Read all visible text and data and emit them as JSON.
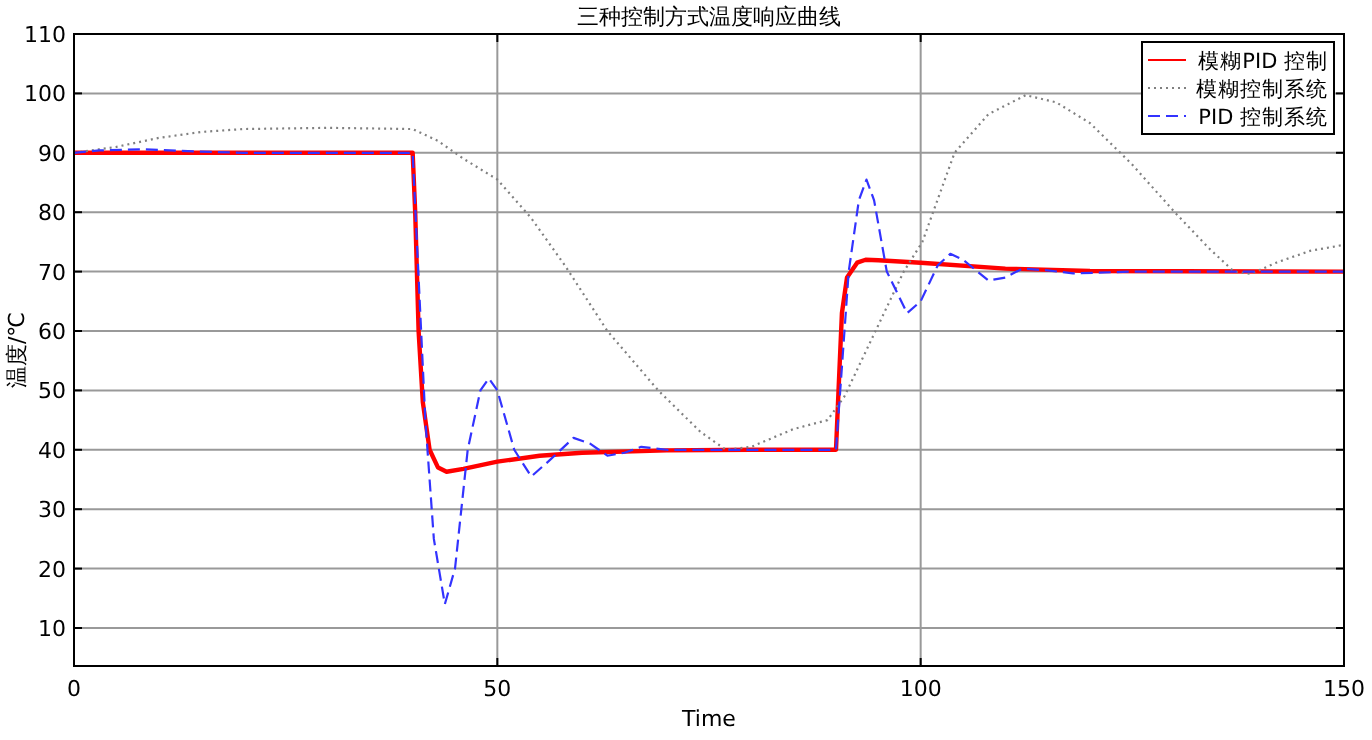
{
  "chart_data": {
    "type": "line",
    "title": "三种控制方式温度响应曲线",
    "xlabel": "Time",
    "ylabel": "温度/℃",
    "xlim": [
      0,
      150
    ],
    "ylim": [
      3.6,
      110
    ],
    "xticks": [
      0,
      50,
      100,
      150
    ],
    "yticks": [
      10,
      20,
      30,
      40,
      50,
      60,
      70,
      80,
      90,
      100,
      110
    ],
    "grid": true,
    "legend": "top right",
    "series": [
      {
        "name": "模糊PID 控制",
        "color": "#ff0000",
        "line_style": "solid",
        "x": [
          0,
          40,
          40.3,
          40.7,
          41.2,
          42,
          43,
          44,
          46,
          50,
          55,
          60,
          70,
          80,
          90,
          90.3,
          90.7,
          91.3,
          92.5,
          93.5,
          95,
          100,
          110,
          120,
          150
        ],
        "values": [
          90,
          90,
          80,
          60,
          48,
          40,
          37,
          36.3,
          36.8,
          38,
          39,
          39.5,
          39.9,
          40,
          40,
          50,
          63,
          69,
          71.5,
          72,
          71.9,
          71.5,
          70.5,
          70.1,
          70
        ]
      },
      {
        "name": "模糊控制系统",
        "color": "#808080",
        "line_style": "dotted",
        "x": [
          0,
          5,
          10,
          15,
          20,
          30,
          40,
          43,
          46,
          50,
          54,
          58,
          63,
          69,
          74,
          77,
          80,
          85,
          89,
          91,
          94,
          98,
          100.2,
          104,
          108,
          112.4,
          116,
          120,
          125,
          130,
          134,
          137,
          139,
          142,
          146,
          150
        ],
        "values": [
          90,
          91,
          92.5,
          93.5,
          94,
          94.2,
          94,
          92,
          89,
          85.5,
          79,
          71,
          60,
          50,
          43,
          40,
          40.5,
          43.5,
          45,
          49,
          58,
          70,
          75,
          90,
          96.5,
          99.7,
          98.5,
          95,
          88,
          80,
          74,
          70,
          69.6,
          71.5,
          73.5,
          74.5
        ]
      },
      {
        "name": "PID 控制系统",
        "color": "#3333ff",
        "line_style": "dashed",
        "x": [
          0,
          3,
          8,
          15,
          20,
          40,
          40.5,
          41.5,
          42.5,
          43.8,
          45,
          46.5,
          48,
          49,
          50,
          52,
          54,
          56,
          59,
          61,
          63,
          65,
          67,
          70,
          90,
          90.5,
          91.5,
          92.7,
          93.6,
          94.5,
          96,
          98.4,
          100,
          102,
          103.5,
          105,
          108,
          110,
          112,
          115,
          118,
          125,
          150
        ],
        "values": [
          90,
          90.4,
          90.6,
          90.2,
          90,
          90,
          75,
          45,
          25,
          14,
          20,
          40,
          50,
          52,
          50,
          40,
          35.5,
          38,
          42,
          41,
          39,
          39.5,
          40.5,
          40,
          40,
          50,
          70,
          82,
          85.5,
          82,
          70,
          63,
          65,
          71,
          73,
          72,
          68.5,
          69,
          70.5,
          70.2,
          69.7,
          70,
          70
        ]
      }
    ]
  }
}
